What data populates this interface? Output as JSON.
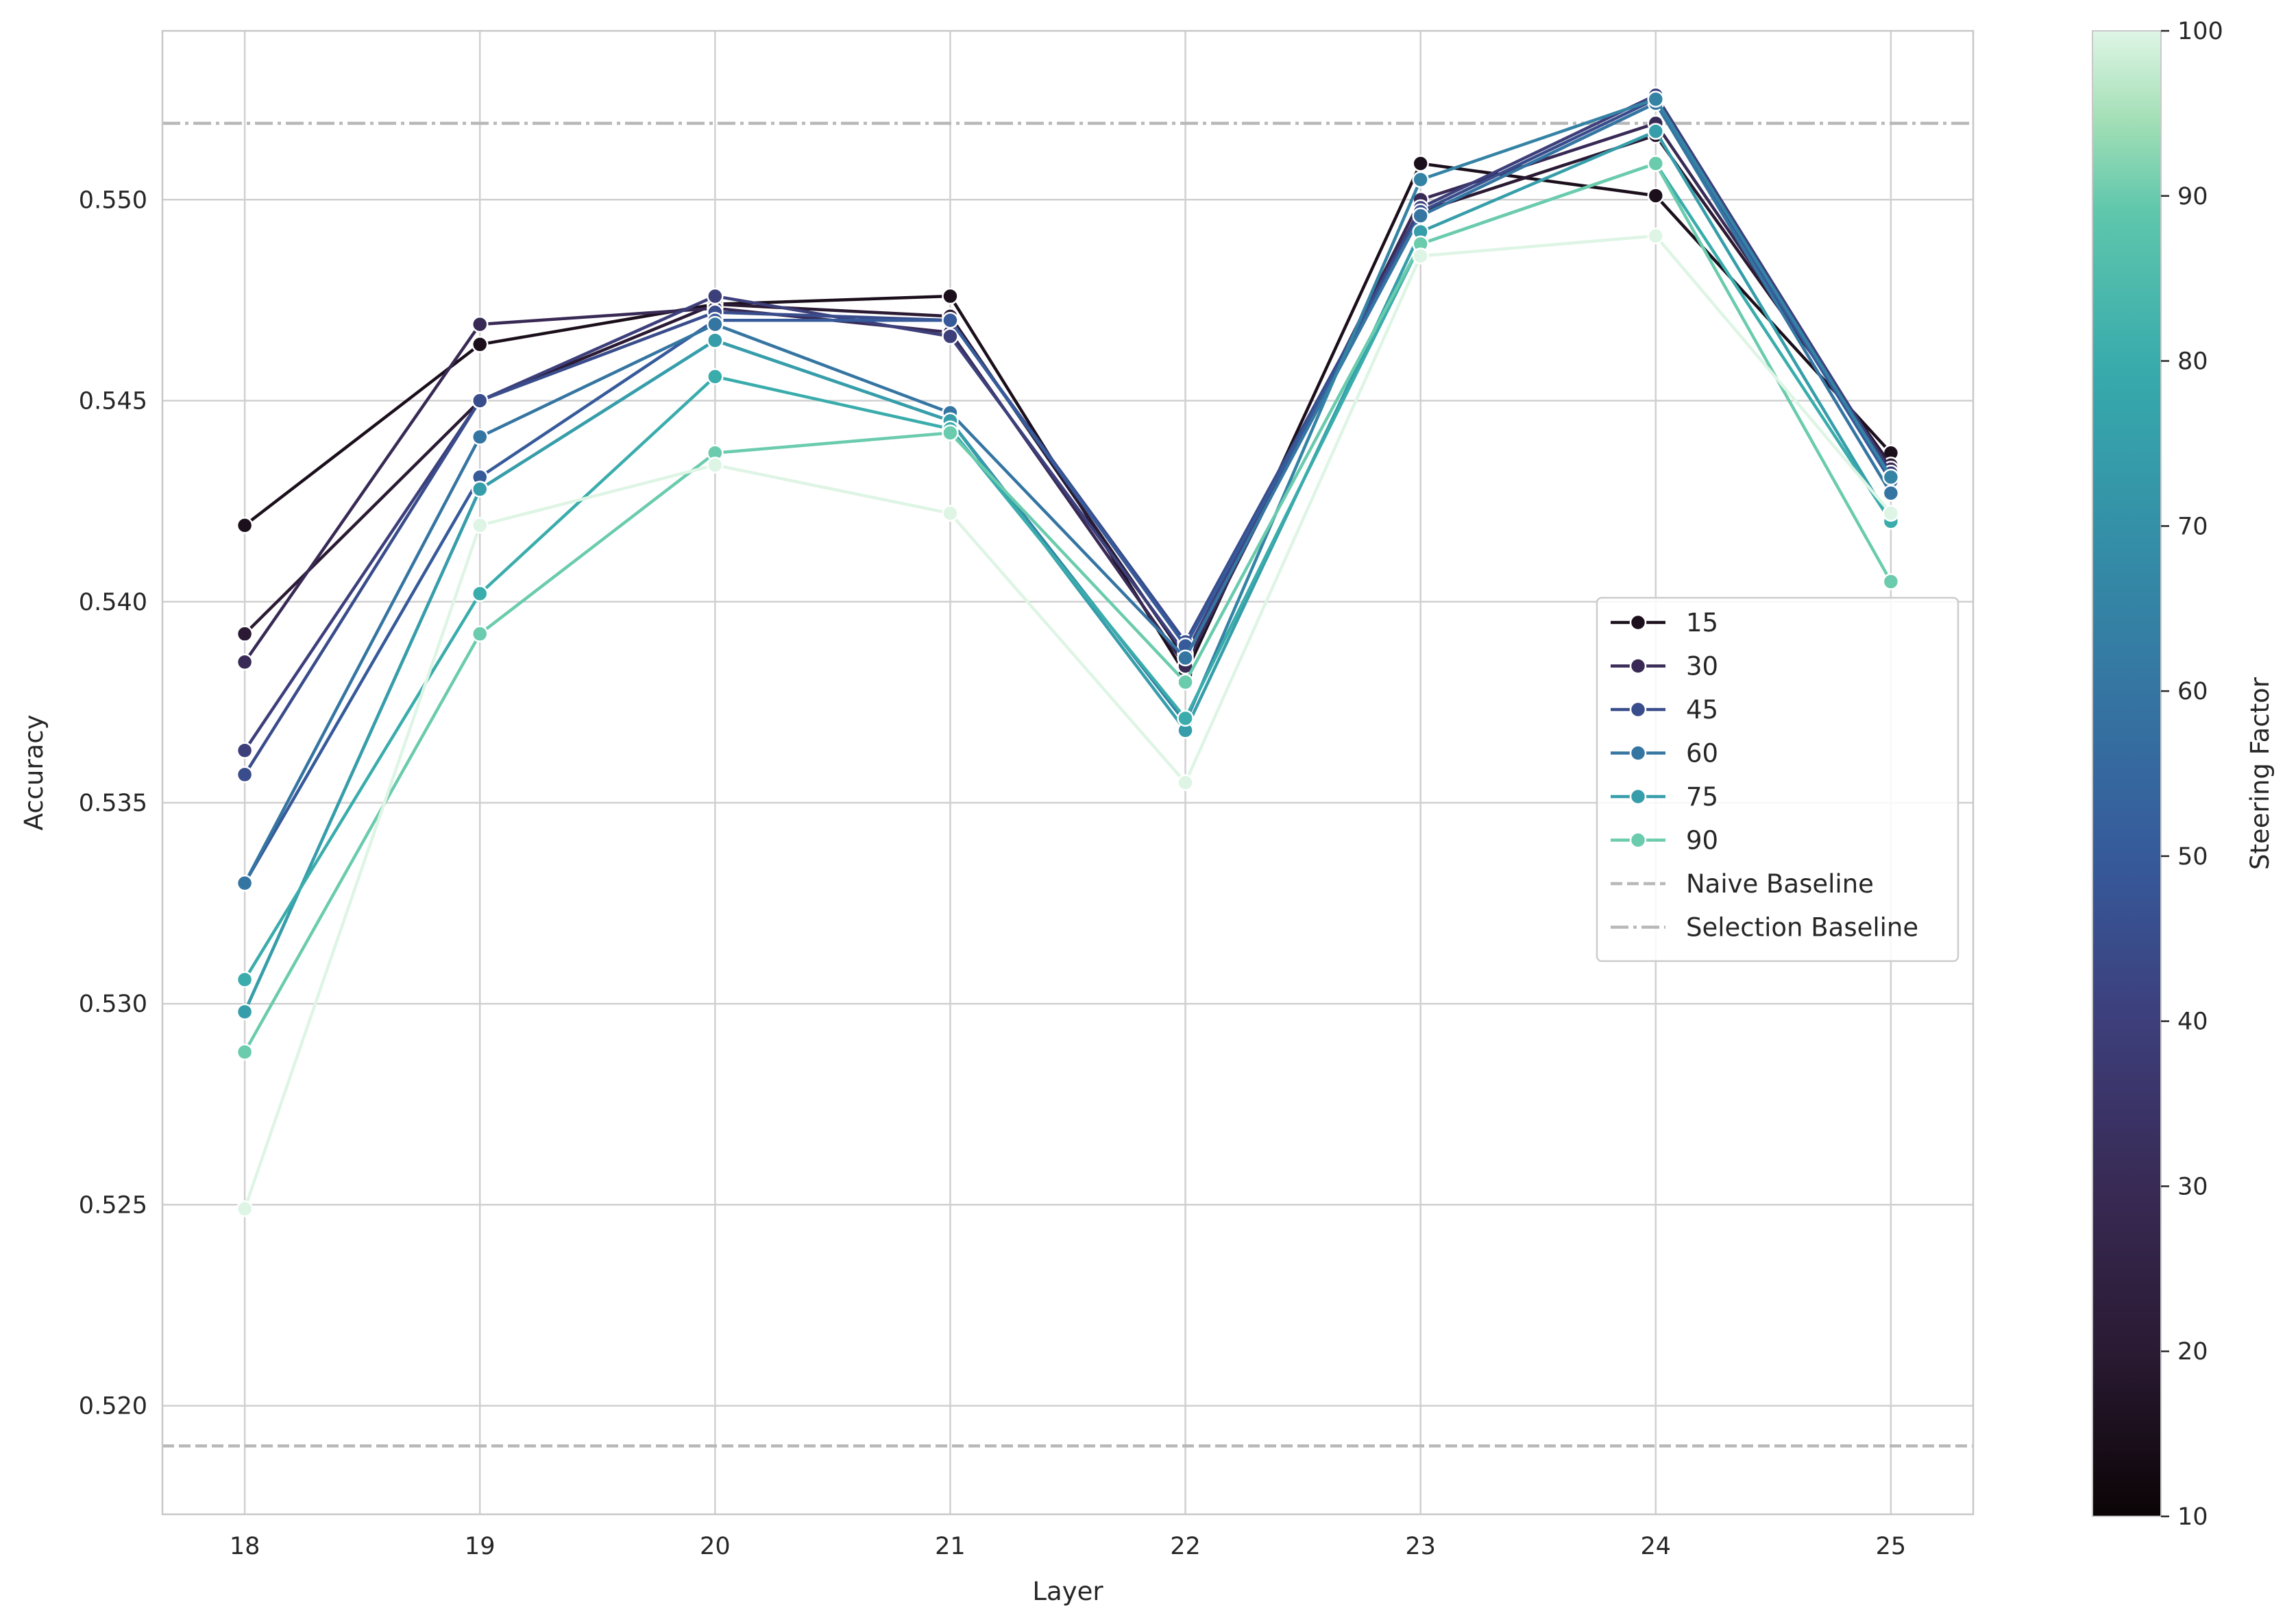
{
  "chart_data": {
    "type": "line",
    "xlabel": "Layer",
    "ylabel": "Accuracy",
    "x": [
      18,
      19,
      20,
      21,
      22,
      23,
      24,
      25
    ],
    "xlim": [
      17.65,
      25.35
    ],
    "ylim": [
      0.5173,
      0.5542
    ],
    "yticks": [
      "0.520",
      "0.525",
      "0.530",
      "0.535",
      "0.540",
      "0.545",
      "0.550"
    ],
    "grid": true,
    "legend_position": "center-right",
    "colorbar": {
      "label": "Steering Factor",
      "range": [
        10,
        100
      ],
      "ticks": [
        10,
        20,
        30,
        40,
        50,
        60,
        70,
        80,
        90,
        100
      ]
    },
    "reference_lines": [
      {
        "name": "Naive Baseline",
        "y": 0.519,
        "style": "dashed",
        "color": "#b8b8b8"
      },
      {
        "name": "Selection Baseline",
        "y": 0.5519,
        "style": "dashdot",
        "color": "#b8b8b8"
      }
    ],
    "series": [
      {
        "name": "15",
        "factor": 15,
        "legend": true,
        "values": [
          0.5419,
          0.5464,
          0.5474,
          0.5476,
          0.5382,
          0.5509,
          0.5501,
          0.5437
        ]
      },
      {
        "factor": 20,
        "legend": false,
        "values": [
          0.5392,
          0.545,
          0.5474,
          0.5471,
          0.5386,
          0.5497,
          0.5516,
          0.5434
        ]
      },
      {
        "name": "30",
        "factor": 30,
        "legend": true,
        "values": [
          0.5385,
          0.5469,
          0.5473,
          0.5467,
          0.5384,
          0.55,
          0.5519,
          0.5433
        ]
      },
      {
        "factor": 40,
        "legend": false,
        "values": [
          0.5363,
          0.545,
          0.5476,
          0.5466,
          0.5387,
          0.5498,
          0.5526,
          0.5432
        ]
      },
      {
        "name": "45",
        "factor": 45,
        "legend": true,
        "values": [
          0.5357,
          0.545,
          0.5472,
          0.547,
          0.539,
          0.5497,
          0.5525,
          0.5431
        ]
      },
      {
        "factor": 50,
        "legend": false,
        "values": [
          0.533,
          0.5431,
          0.547,
          0.547,
          0.5389,
          0.5496,
          0.5524,
          0.543
        ]
      },
      {
        "name": "60",
        "factor": 60,
        "legend": true,
        "values": [
          0.533,
          0.5441,
          0.5469,
          0.5447,
          0.5386,
          0.5496,
          0.5524,
          0.5427
        ]
      },
      {
        "factor": 65,
        "legend": false,
        "values": [
          0.5298,
          0.5428,
          0.5465,
          0.5445,
          0.537,
          0.5505,
          0.5525,
          0.5431
        ]
      },
      {
        "name": "75",
        "factor": 75,
        "legend": true,
        "values": [
          0.5298,
          0.5428,
          0.5465,
          0.5445,
          0.5368,
          0.5492,
          0.5517,
          0.542
        ]
      },
      {
        "factor": 80,
        "legend": false,
        "values": [
          0.5306,
          0.5402,
          0.5456,
          0.5443,
          0.5371,
          0.5489,
          0.5509,
          0.542
        ]
      },
      {
        "name": "90",
        "factor": 90,
        "legend": true,
        "values": [
          0.5288,
          0.5392,
          0.5437,
          0.5442,
          0.538,
          0.5489,
          0.5509,
          0.5405
        ]
      },
      {
        "factor": 100,
        "legend": false,
        "values": [
          0.5249,
          0.5419,
          0.5434,
          0.5422,
          0.5355,
          0.5486,
          0.5491,
          0.5422
        ]
      }
    ]
  }
}
